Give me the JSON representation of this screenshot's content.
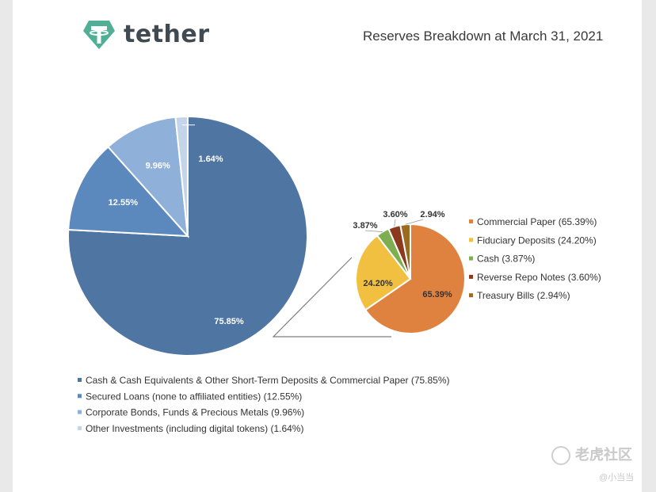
{
  "header": {
    "logo_text": "tether",
    "title": "Reserves Breakdown at March 31, 2021"
  },
  "colors": {
    "brand": "#50af95",
    "main_pie": [
      "#4f76a3",
      "#5b89bd",
      "#8fb0d9",
      "#c4d5ea"
    ],
    "sub_pie": [
      "#e0823f",
      "#f2c040",
      "#7eae52",
      "#8b3a1e",
      "#9d6b1f"
    ]
  },
  "chart_data": [
    {
      "type": "pie",
      "labels": [
        "Cash & Cash Equivalents & Other Short-Term Deposits & Commercial Paper (75.85%)",
        "Secured Loans (none to affiliated entities) (12.55%)",
        "Corporate Bonds, Funds & Precious Metals (9.96%)",
        "Other Investments (including digital tokens) (1.64%)"
      ],
      "values": [
        75.85,
        12.55,
        9.96,
        1.64
      ],
      "data_labels": [
        "75.85%",
        "12.55%",
        "9.96%",
        "1.64%"
      ],
      "legend_position": "bottom"
    },
    {
      "type": "pie",
      "labels": [
        "Commercial Paper (65.39%)",
        "Fiduciary Deposits (24.20%)",
        "Cash (3.87%)",
        "Reverse Repo Notes (3.60%)",
        "Treasury Bills (2.94%)"
      ],
      "values": [
        65.39,
        24.2,
        3.87,
        3.6,
        2.94
      ],
      "data_labels": [
        "65.39%",
        "24.20%",
        "3.87%",
        "3.60%",
        "2.94%"
      ],
      "legend_position": "right"
    }
  ],
  "watermark": {
    "text": "老虎社区",
    "sub": "@小当当"
  }
}
